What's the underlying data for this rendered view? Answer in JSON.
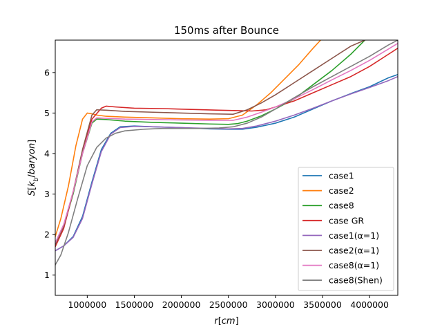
{
  "chart_data": {
    "type": "line",
    "title": "150ms after Bounce",
    "xlabel": "r[cm]",
    "ylabel": "S[k_b/baryon]",
    "xlim": [
      660000,
      4300000
    ],
    "ylim": [
      0.5,
      6.8
    ],
    "xticks": [
      1000000,
      1500000,
      2000000,
      2500000,
      3000000,
      3500000,
      4000000
    ],
    "xtick_labels": [
      "1000000",
      "1500000",
      "2000000",
      "2500000",
      "3000000",
      "3500000",
      "4000000"
    ],
    "yticks": [
      1,
      2,
      3,
      4,
      5,
      6
    ],
    "ytick_labels": [
      "1",
      "2",
      "3",
      "4",
      "5",
      "6"
    ],
    "grid": false,
    "legend_position": "lower right",
    "series": [
      {
        "name": "case1",
        "color": "#1f77b4",
        "x": [
          660000,
          750000,
          850000,
          950000,
          1050000,
          1150000,
          1250000,
          1350000,
          1500000,
          1700000,
          2000000,
          2300000,
          2500000,
          2650000,
          2800000,
          3000000,
          3200000,
          3400000,
          3600000,
          3800000,
          4000000,
          4200000,
          4300000
        ],
        "y": [
          1.6,
          1.72,
          1.95,
          2.45,
          3.3,
          4.1,
          4.5,
          4.66,
          4.68,
          4.66,
          4.64,
          4.61,
          4.6,
          4.6,
          4.65,
          4.75,
          4.9,
          5.1,
          5.3,
          5.48,
          5.65,
          5.87,
          5.95
        ]
      },
      {
        "name": "case2",
        "color": "#ff7f0e",
        "x": [
          660000,
          720000,
          800000,
          880000,
          950000,
          1000000,
          1050000,
          1100000,
          1200000,
          1400000,
          1700000,
          2000000,
          2300000,
          2500000,
          2650000,
          2800000,
          2950000,
          3100000,
          3250000,
          3400000,
          3480000
        ],
        "y": [
          1.95,
          2.4,
          3.2,
          4.2,
          4.85,
          5.0,
          4.98,
          4.95,
          4.92,
          4.9,
          4.88,
          4.86,
          4.85,
          4.86,
          4.95,
          5.2,
          5.5,
          5.85,
          6.2,
          6.6,
          6.8
        ]
      },
      {
        "name": "case8",
        "color": "#2ca02c",
        "x": [
          660000,
          750000,
          850000,
          950000,
          1050000,
          1100000,
          1200000,
          1400000,
          1700000,
          2000000,
          2300000,
          2500000,
          2600000,
          2700000,
          2850000,
          3000000,
          3200000,
          3400000,
          3600000,
          3800000,
          3950000
        ],
        "y": [
          1.8,
          2.2,
          3.0,
          4.0,
          4.75,
          4.85,
          4.84,
          4.8,
          4.77,
          4.75,
          4.73,
          4.72,
          4.74,
          4.8,
          4.93,
          5.1,
          5.35,
          5.7,
          6.05,
          6.45,
          6.8
        ]
      },
      {
        "name": "case GR",
        "color": "#d62728",
        "x": [
          660000,
          750000,
          850000,
          950000,
          1050000,
          1150000,
          1200000,
          1300000,
          1500000,
          1800000,
          2100000,
          2400000,
          2600000,
          2750000,
          2900000,
          3000000,
          3200000,
          3400000,
          3600000,
          3800000,
          4000000,
          4200000,
          4300000
        ],
        "y": [
          1.7,
          2.15,
          3.05,
          4.05,
          4.85,
          5.12,
          5.17,
          5.15,
          5.12,
          5.11,
          5.09,
          5.07,
          5.06,
          5.05,
          5.08,
          5.15,
          5.3,
          5.5,
          5.7,
          5.9,
          6.15,
          6.45,
          6.6
        ]
      },
      {
        "name": "case1(α=1)",
        "color": "#9467bd",
        "x": [
          660000,
          750000,
          850000,
          950000,
          1050000,
          1150000,
          1250000,
          1350000,
          1500000,
          1700000,
          2000000,
          2300000,
          2500000,
          2650000,
          2800000,
          3000000,
          3200000,
          3400000,
          3600000,
          3800000,
          4000000,
          4200000,
          4300000
        ],
        "y": [
          1.6,
          1.72,
          1.93,
          2.4,
          3.25,
          4.05,
          4.48,
          4.64,
          4.67,
          4.66,
          4.64,
          4.62,
          4.61,
          4.62,
          4.68,
          4.8,
          4.95,
          5.12,
          5.3,
          5.47,
          5.63,
          5.8,
          5.9
        ]
      },
      {
        "name": "case2(α=1)",
        "color": "#8c564b",
        "x": [
          660000,
          750000,
          850000,
          950000,
          1050000,
          1100000,
          1200000,
          1400000,
          1700000,
          2000000,
          2300000,
          2550000,
          2700000,
          2850000,
          3000000,
          3200000,
          3400000,
          3600000,
          3800000,
          3950000
        ],
        "y": [
          1.75,
          2.2,
          3.05,
          4.1,
          4.95,
          5.08,
          5.07,
          5.04,
          5.02,
          5.0,
          4.98,
          4.97,
          5.08,
          5.25,
          5.45,
          5.75,
          6.05,
          6.35,
          6.65,
          6.8
        ]
      },
      {
        "name": "case8(α=1)",
        "color": "#e377c2",
        "x": [
          660000,
          750000,
          850000,
          950000,
          1050000,
          1100000,
          1200000,
          1400000,
          1700000,
          2000000,
          2300000,
          2550000,
          2700000,
          2850000,
          3000000,
          3200000,
          3400000,
          3600000,
          3800000,
          4000000,
          4200000,
          4300000
        ],
        "y": [
          1.8,
          2.25,
          3.05,
          4.0,
          4.78,
          4.88,
          4.87,
          4.85,
          4.84,
          4.83,
          4.82,
          4.82,
          4.9,
          5.02,
          5.15,
          5.35,
          5.58,
          5.82,
          6.05,
          6.3,
          6.58,
          6.72
        ]
      },
      {
        "name": "case8(Shen)",
        "color": "#7f7f7f",
        "x": [
          660000,
          720000,
          800000,
          900000,
          1000000,
          1100000,
          1200000,
          1300000,
          1400000,
          1600000,
          1800000,
          2000000,
          2200000,
          2400000,
          2550000,
          2700000,
          2850000,
          3000000,
          3200000,
          3400000,
          3600000,
          3800000,
          4000000,
          4200000,
          4300000
        ],
        "y": [
          1.25,
          1.5,
          2.05,
          2.9,
          3.7,
          4.15,
          4.38,
          4.5,
          4.56,
          4.6,
          4.62,
          4.62,
          4.62,
          4.63,
          4.66,
          4.75,
          4.9,
          5.1,
          5.38,
          5.65,
          5.9,
          6.15,
          6.4,
          6.68,
          6.8
        ]
      }
    ]
  }
}
